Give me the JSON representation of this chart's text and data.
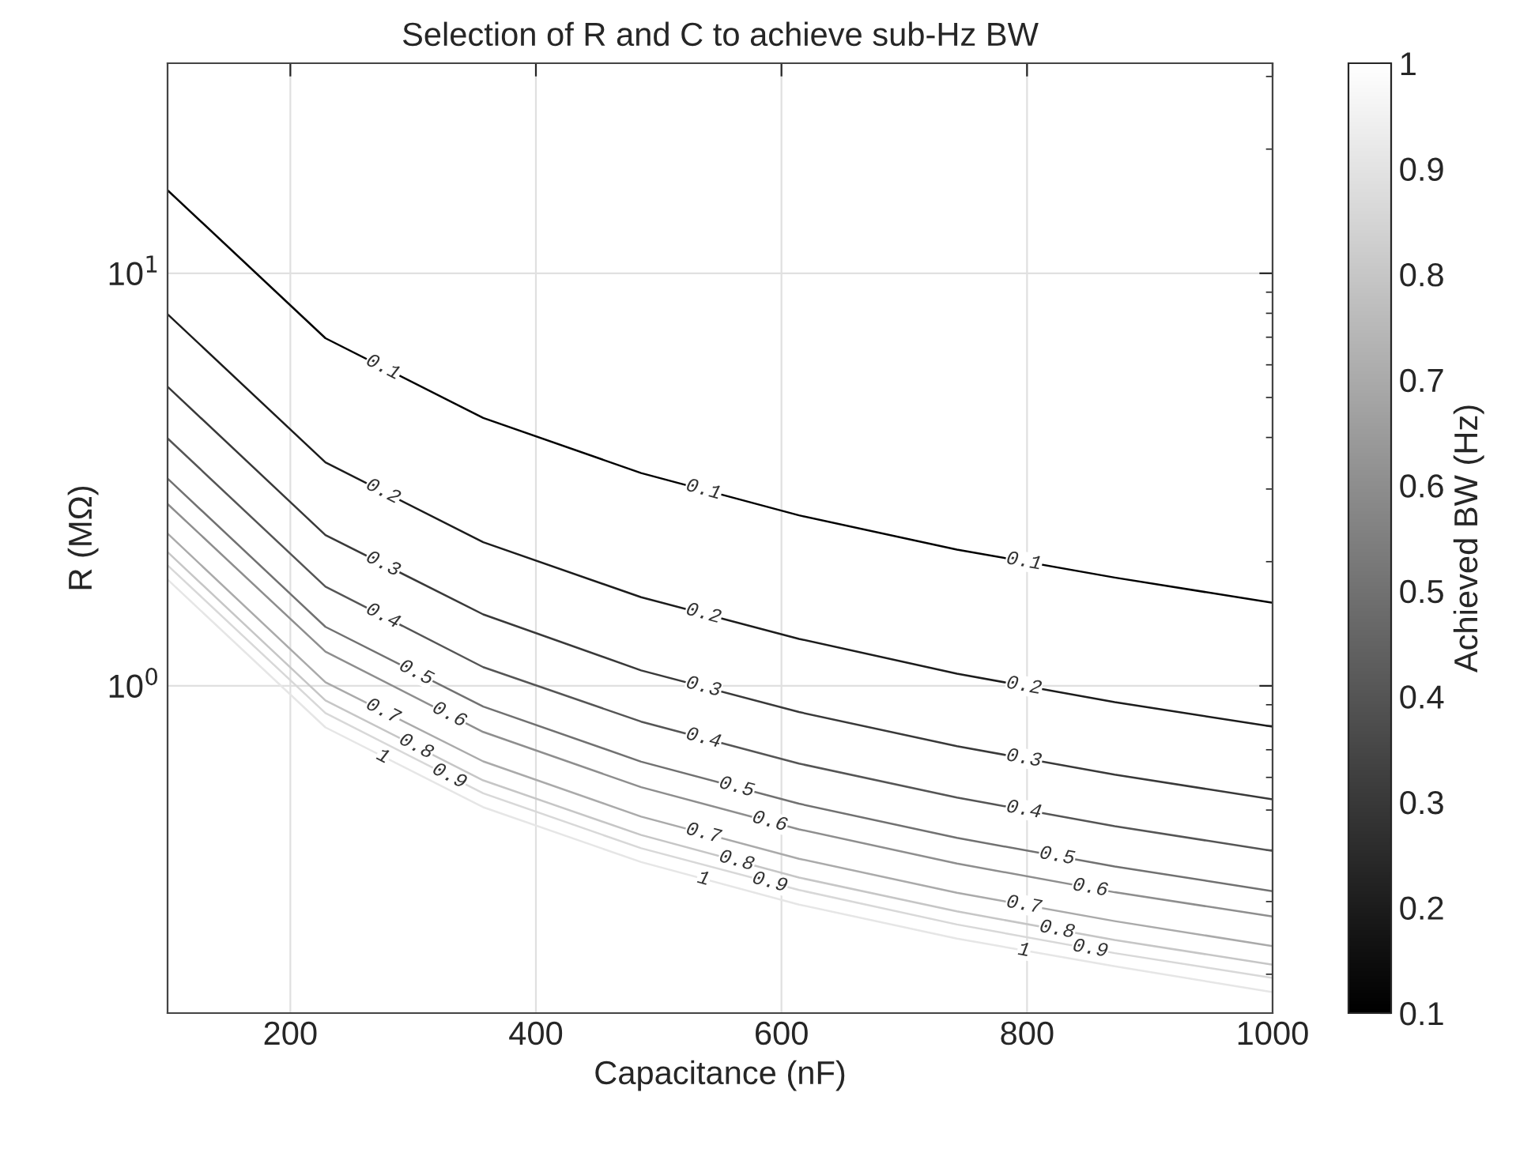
{
  "chart_data": {
    "type": "line",
    "title": "Selection of R and C to achieve sub-Hz BW",
    "xlabel": "Capacitance (nF)",
    "ylabel": "R (MΩ)",
    "clabel": "Achieved BW (Hz)",
    "x": [
      100,
      228.6,
      357.1,
      485.7,
      614.3,
      742.9,
      871.4,
      1000
    ],
    "series": [
      {
        "name": "0.1",
        "color": "#000000",
        "values": [
          15.9,
          6.96,
          4.46,
          3.28,
          2.59,
          2.14,
          1.83,
          1.59
        ]
      },
      {
        "name": "0.2",
        "color": "#1c1c1c",
        "values": [
          7.96,
          3.48,
          2.23,
          1.64,
          1.3,
          1.07,
          0.913,
          0.796
        ]
      },
      {
        "name": "0.3",
        "color": "#393939",
        "values": [
          5.31,
          2.32,
          1.49,
          1.09,
          0.864,
          0.714,
          0.609,
          0.531
        ]
      },
      {
        "name": "0.4",
        "color": "#555555",
        "values": [
          3.98,
          1.74,
          1.11,
          0.819,
          0.648,
          0.536,
          0.457,
          0.398
        ]
      },
      {
        "name": "0.5",
        "color": "#717171",
        "values": [
          3.18,
          1.39,
          0.891,
          0.655,
          0.518,
          0.428,
          0.365,
          0.318
        ]
      },
      {
        "name": "0.6",
        "color": "#8e8e8e",
        "values": [
          2.76,
          1.21,
          0.773,
          0.568,
          0.449,
          0.371,
          0.316,
          0.276
        ]
      },
      {
        "name": "0.7",
        "color": "#aaaaaa",
        "values": [
          2.34,
          1.02,
          0.656,
          0.482,
          0.381,
          0.315,
          0.269,
          0.234
        ]
      },
      {
        "name": "0.8",
        "color": "#c6c6c6",
        "values": [
          2.11,
          0.922,
          0.59,
          0.435,
          0.343,
          0.284,
          0.242,
          0.211
        ]
      },
      {
        "name": "0.9",
        "color": "#d8d8d8",
        "values": [
          1.96,
          0.859,
          0.549,
          0.404,
          0.32,
          0.264,
          0.225,
          0.196
        ]
      },
      {
        "name": "1",
        "color": "#e6e6e6",
        "values": [
          1.81,
          0.793,
          0.508,
          0.374,
          0.295,
          0.244,
          0.209,
          0.181
        ]
      }
    ],
    "xlim": [
      100,
      1000
    ],
    "xticks": [
      200,
      400,
      600,
      800,
      1000
    ],
    "ylim": [
      0.161,
      32.3
    ],
    "yticks": [
      {
        "value": 1,
        "label": "10$^{0}$"
      },
      {
        "value": 10,
        "label": "10$^{1}$"
      }
    ],
    "log": "y",
    "grid": true,
    "clim": [
      0.1,
      1
    ],
    "cticks": [
      0.1,
      0.2,
      0.3,
      0.4,
      0.5,
      0.6,
      0.7,
      0.8,
      0.9,
      1
    ]
  }
}
